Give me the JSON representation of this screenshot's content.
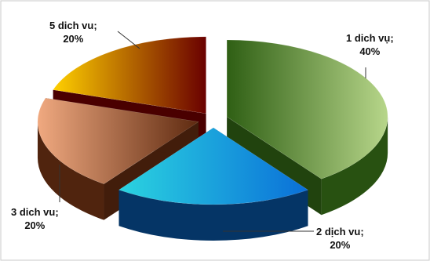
{
  "chart_data": {
    "type": "pie",
    "title": "",
    "slices": [
      {
        "label": "1 dich vụ;",
        "pct": "40%",
        "value": 40
      },
      {
        "label": "2 dịch vu;",
        "pct": "20%",
        "value": 20
      },
      {
        "label": "3 dich vu;",
        "pct": "20%",
        "value": 20
      },
      {
        "label": "5 dich vu;",
        "pct": "20%",
        "value": 20
      }
    ],
    "legend": "none",
    "style": "3d-exploded"
  },
  "colors": {
    "slice_0": [
      "#2f5f14",
      "#b7d68a"
    ],
    "slice_1": [
      "#063e78",
      "#2bd4e0"
    ],
    "slice_2": [
      "#5e2a10",
      "#f0a980"
    ],
    "slice_3": [
      "#6a0000",
      "#ffd000"
    ],
    "leader": "#333333",
    "border": "#c8c8c8"
  }
}
